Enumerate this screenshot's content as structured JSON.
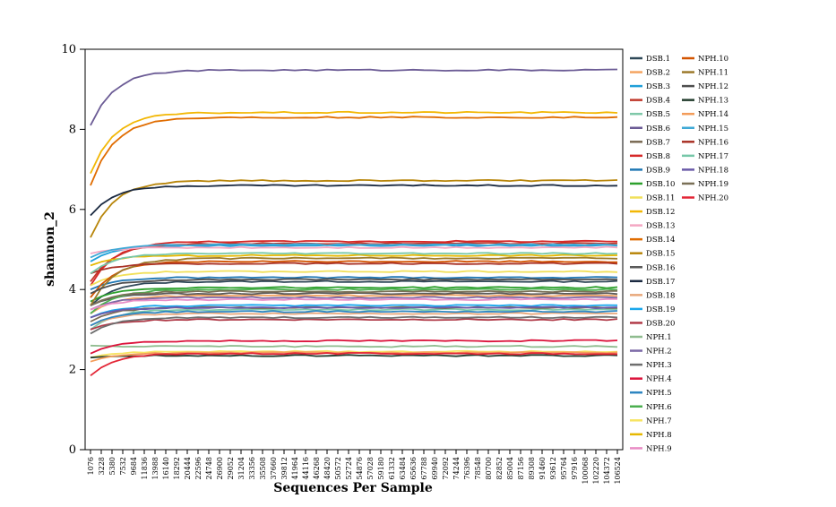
{
  "chart_data": {
    "type": "line",
    "xlabel": "Sequences Per Sample",
    "ylabel": "shannon_2",
    "ylim": [
      0,
      10
    ],
    "yticks": [
      0,
      2,
      4,
      6,
      8,
      10
    ],
    "x": [
      1076,
      3228,
      5380,
      7532,
      9684,
      11836,
      13988,
      16140,
      18292,
      20444,
      22596,
      24748,
      26900,
      29052,
      31204,
      33356,
      35508,
      37660,
      39812,
      41964,
      44116,
      46268,
      48420,
      50572,
      52724,
      54876,
      57028,
      59180,
      61332,
      63484,
      65636,
      67788,
      69940,
      72092,
      74244,
      76396,
      78548,
      80700,
      82852,
      85004,
      87156,
      89308,
      91460,
      93612,
      95764,
      97916,
      100068,
      102220,
      104372,
      106524
    ],
    "x_tick_labels": [
      "1076",
      "3228",
      "5380",
      "7532",
      "9684",
      "11836",
      "13988",
      "16140",
      "18292",
      "20444",
      "22596",
      "24748",
      "26900",
      "29052",
      "31204",
      "33356",
      "35508",
      "37660",
      "39812",
      "41964",
      "44116",
      "46268",
      "48420",
      "50572",
      "52724",
      "54876",
      "57028",
      "59180",
      "61332",
      "63484",
      "65636",
      "67788",
      "69940",
      "72092",
      "74244",
      "76396",
      "78548",
      "80700",
      "82852",
      "85004",
      "87156",
      "89308",
      "91460",
      "93612",
      "95764",
      "97916",
      "100068",
      "102220",
      "104372",
      "106524"
    ],
    "grid": false,
    "legend_placement": "right",
    "series": [
      {
        "name": "DSB.1",
        "color": "#2f4858",
        "start": 3.6,
        "final": 4.2
      },
      {
        "name": "DSB.2",
        "color": "#f4a460",
        "start": 3.4,
        "final": 3.85
      },
      {
        "name": "DSB.3",
        "color": "#1f9fd8",
        "start": 4.7,
        "final": 5.1
      },
      {
        "name": "DSB.4",
        "color": "#c0392b",
        "start": 4.2,
        "final": 5.15
      },
      {
        "name": "DSB.5",
        "color": "#7fc8a9",
        "start": 3.0,
        "final": 3.5
      },
      {
        "name": "DSB.6",
        "color": "#6b5b95",
        "start": 8.1,
        "final": 9.48
      },
      {
        "name": "DSB.7",
        "color": "#7a6a53",
        "start": 3.2,
        "final": 3.55
      },
      {
        "name": "DSB.8",
        "color": "#d62828",
        "start": 4.1,
        "final": 5.2
      },
      {
        "name": "DSB.9",
        "color": "#1f77b4",
        "start": 4.0,
        "final": 4.3
      },
      {
        "name": "DSB.10",
        "color": "#2ca02c",
        "start": 3.7,
        "final": 4.05
      },
      {
        "name": "DSB.11",
        "color": "#f1e05a",
        "start": 4.1,
        "final": 4.45
      },
      {
        "name": "DSB.12",
        "color": "#f2b705",
        "start": 6.9,
        "final": 8.42
      },
      {
        "name": "DSB.13",
        "color": "#f4a7c3",
        "start": 4.9,
        "final": 5.05
      },
      {
        "name": "DSB.14",
        "color": "#e06c00",
        "start": 6.6,
        "final": 8.3
      },
      {
        "name": "DSB.15",
        "color": "#b8860b",
        "start": 5.3,
        "final": 6.72
      },
      {
        "name": "DSB.16",
        "color": "#5a5a5a",
        "start": 3.6,
        "final": 3.9
      },
      {
        "name": "DSB.17",
        "color": "#1b2a41",
        "start": 5.85,
        "final": 6.6
      },
      {
        "name": "DSB.18",
        "color": "#e8a87c",
        "start": 3.1,
        "final": 3.4
      },
      {
        "name": "DSB.19",
        "color": "#1aa7ec",
        "start": 3.3,
        "final": 3.6
      },
      {
        "name": "DSB.20",
        "color": "#b03a48",
        "start": 3.0,
        "final": 3.25
      },
      {
        "name": "NPH.1",
        "color": "#8fbc8f",
        "start": 2.6,
        "final": 2.58
      },
      {
        "name": "NPH.2",
        "color": "#7b68a6",
        "start": 3.5,
        "final": 3.8
      },
      {
        "name": "NPH.3",
        "color": "#6e6e6e",
        "start": 2.9,
        "final": 3.3
      },
      {
        "name": "NPH.4",
        "color": "#dc143c",
        "start": 2.4,
        "final": 2.72
      },
      {
        "name": "NPH.5",
        "color": "#2e86c1",
        "start": 3.1,
        "final": 3.45
      },
      {
        "name": "NPH.6",
        "color": "#4caf50",
        "start": 3.4,
        "final": 4.0
      },
      {
        "name": "NPH.7",
        "color": "#f7e463",
        "start": 2.3,
        "final": 2.45
      },
      {
        "name": "NPH.8",
        "color": "#e6b800",
        "start": 4.6,
        "final": 4.85
      },
      {
        "name": "NPH.9",
        "color": "#e88cc5",
        "start": 3.5,
        "final": 3.75
      },
      {
        "name": "NPH.10",
        "color": "#d35400",
        "start": 3.8,
        "final": 4.7
      },
      {
        "name": "NPH.11",
        "color": "#9c7a2b",
        "start": 3.6,
        "final": 4.78
      },
      {
        "name": "NPH.12",
        "color": "#4d4d4d",
        "start": 3.9,
        "final": 4.25
      },
      {
        "name": "NPH.13",
        "color": "#233d2e",
        "start": 2.3,
        "final": 2.35
      },
      {
        "name": "NPH.14",
        "color": "#f39c5a",
        "start": 2.2,
        "final": 2.42
      },
      {
        "name": "NPH.15",
        "color": "#3fa9d6",
        "start": 4.8,
        "final": 5.12
      },
      {
        "name": "NPH.16",
        "color": "#a93226",
        "start": 4.4,
        "final": 4.65
      },
      {
        "name": "NPH.17",
        "color": "#76c7a8",
        "start": 4.4,
        "final": 4.9
      },
      {
        "name": "NPH.18",
        "color": "#6a5aa8",
        "start": 3.3,
        "final": 3.55
      },
      {
        "name": "NPH.19",
        "color": "#7a7057",
        "start": 3.6,
        "final": 3.95
      },
      {
        "name": "NPH.20",
        "color": "#e32636",
        "start": 1.85,
        "final": 2.4
      }
    ]
  }
}
